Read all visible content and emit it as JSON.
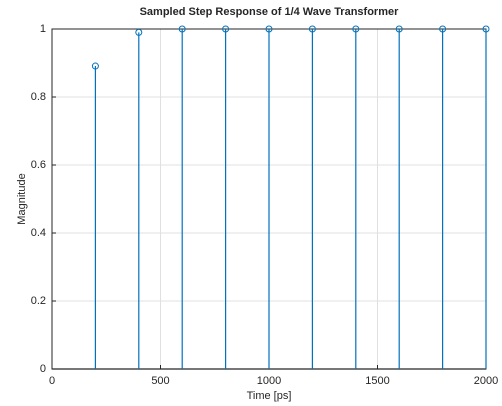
{
  "chart_data": {
    "type": "stem",
    "title": "Sampled Step Response of 1/4 Wave Transformer",
    "xlabel": "Time [ps]",
    "ylabel": "Magnitude",
    "x": [
      200,
      400,
      600,
      800,
      1000,
      1200,
      1400,
      1600,
      1800,
      2000
    ],
    "values": [
      0.891,
      0.99,
      1,
      1,
      1,
      1,
      1,
      1,
      1,
      1
    ],
    "color": "#0072bd",
    "xlim": [
      0,
      2000
    ],
    "xticks": [
      0,
      500,
      1000,
      1500,
      2000
    ],
    "ylim": [
      0,
      1
    ],
    "yticks": [
      0,
      0.2,
      0.4,
      0.6,
      0.8,
      1
    ],
    "grid": true
  }
}
